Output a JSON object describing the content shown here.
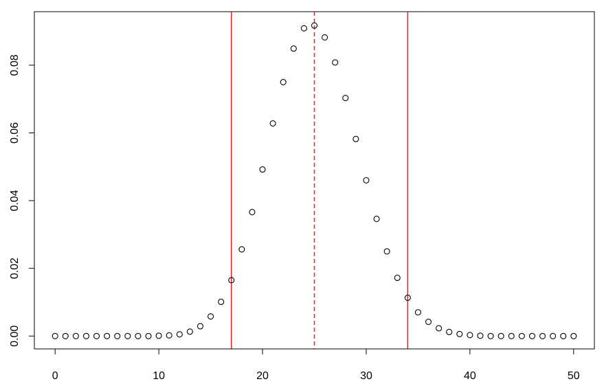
{
  "chart_data": {
    "type": "scatter",
    "title": "",
    "xlabel": "",
    "ylabel": "",
    "xlim": [
      -2,
      52
    ],
    "ylim": [
      -0.0038,
      0.0958
    ],
    "x_ticks": [
      0,
      10,
      20,
      30,
      40,
      50
    ],
    "y_ticks": [
      0.0,
      0.02,
      0.04,
      0.06,
      0.08
    ],
    "y_tick_labels": [
      "0.00",
      "0.02",
      "0.04",
      "0.06",
      "0.08"
    ],
    "grid": false,
    "marker": "open-circle",
    "series": [
      {
        "x": [
          0,
          1,
          2,
          3,
          4,
          5,
          6,
          7,
          8,
          9,
          10,
          11,
          12,
          13,
          14,
          15,
          16,
          17,
          18,
          19,
          20,
          21,
          22,
          23,
          24,
          25,
          26,
          27,
          28,
          29,
          30,
          31,
          32,
          33,
          34,
          35,
          36,
          37,
          38,
          39,
          40,
          41,
          42,
          43,
          44,
          45,
          46,
          47,
          48,
          49,
          50
        ],
        "y": [
          0,
          0,
          0,
          0,
          0,
          0,
          0,
          0,
          0,
          0,
          0.0001,
          0.0002,
          0.0005,
          0.0013,
          0.0029,
          0.0058,
          0.0101,
          0.0165,
          0.0256,
          0.0366,
          0.0492,
          0.0628,
          0.075,
          0.0849,
          0.0909,
          0.0917,
          0.0882,
          0.0808,
          0.0703,
          0.0582,
          0.046,
          0.0346,
          0.025,
          0.0172,
          0.0113,
          0.007,
          0.0042,
          0.0023,
          0.0012,
          0.0006,
          0.0003,
          0.0001,
          0,
          0,
          0,
          0,
          0,
          0,
          0,
          0,
          0
        ]
      }
    ],
    "vertical_lines": [
      {
        "x": 17,
        "style": "solid",
        "color": "#e8262e"
      },
      {
        "x": 25,
        "style": "dashed",
        "color": "#e8262e"
      },
      {
        "x": 34,
        "style": "solid",
        "color": "#e8262e"
      }
    ],
    "colors": {
      "points": "#000000",
      "lines": "#e8262e",
      "axis": "#000000"
    }
  }
}
